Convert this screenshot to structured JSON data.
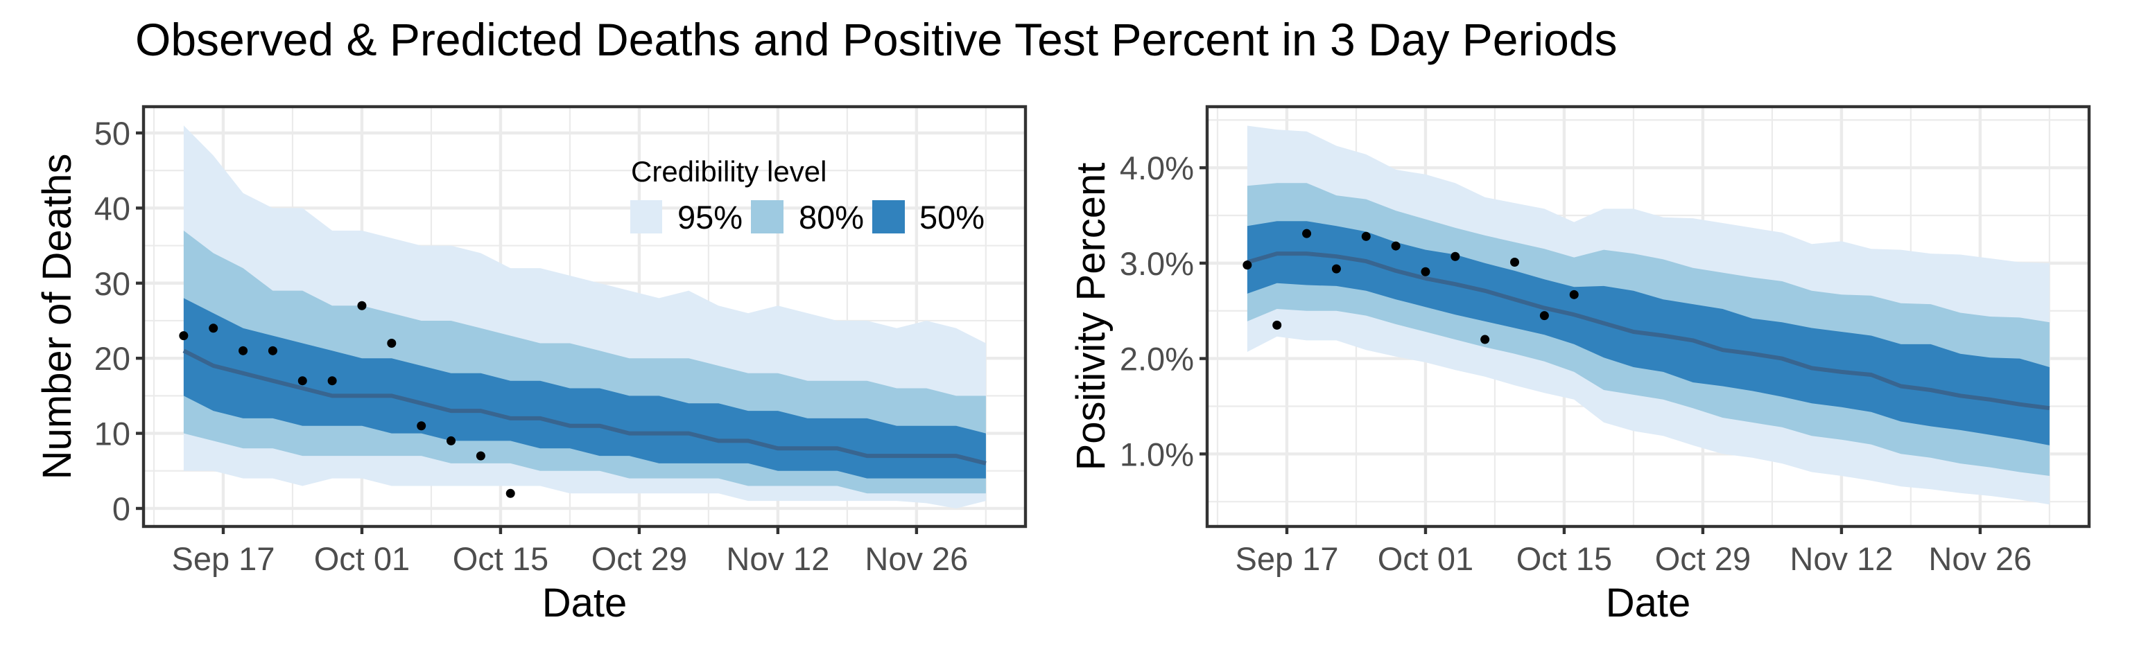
{
  "chart_data": {
    "type": "area",
    "title": "Observed & Predicted Deaths and Positive Test Percent in 3 Day Periods",
    "legend": {
      "title": "Credibility level",
      "placement": "inside-top-right-of-left-panel",
      "entries": [
        {
          "label": "95%",
          "color": "#deebf7"
        },
        {
          "label": "80%",
          "color": "#9ecae1"
        },
        {
          "label": "50%",
          "color": "#3182bd"
        }
      ]
    },
    "colors": {
      "band95": "#deebf7",
      "band80": "#9ecae1",
      "band50": "#3182bd",
      "median": "#386590",
      "observed": "#000000"
    },
    "x_dates": [
      "Sep 13",
      "Sep 16",
      "Sep 19",
      "Sep 22",
      "Sep 25",
      "Sep 28",
      "Oct 01",
      "Oct 04",
      "Oct 07",
      "Oct 10",
      "Oct 13",
      "Oct 16",
      "Oct 19",
      "Oct 22",
      "Oct 25",
      "Oct 28",
      "Oct 31",
      "Nov 03",
      "Nov 06",
      "Nov 09",
      "Nov 12",
      "Nov 15",
      "Nov 18",
      "Nov 21",
      "Nov 24",
      "Nov 27",
      "Nov 30",
      "Dec 03"
    ],
    "x_days_from_start": [
      0,
      3,
      6,
      9,
      12,
      15,
      18,
      21,
      24,
      27,
      30,
      33,
      36,
      39,
      42,
      45,
      48,
      51,
      54,
      57,
      60,
      63,
      66,
      69,
      72,
      75,
      78,
      81
    ],
    "x_range_days": [
      -4.05,
      85
    ],
    "x_ticks": [
      {
        "label": "Sep 17",
        "day": 4
      },
      {
        "label": "Oct 01",
        "day": 18
      },
      {
        "label": "Oct 15",
        "day": 32
      },
      {
        "label": "Oct 29",
        "day": 46
      },
      {
        "label": "Nov 12",
        "day": 60
      },
      {
        "label": "Nov 26",
        "day": 74
      }
    ],
    "panels": [
      {
        "name": "deaths",
        "xlabel": "Date",
        "ylabel": "Number of Deaths",
        "ylim": [
          -2.4,
          53.5
        ],
        "y_ticks": [
          {
            "value": 0,
            "label": "0"
          },
          {
            "value": 10,
            "label": "10"
          },
          {
            "value": 20,
            "label": "20"
          },
          {
            "value": 30,
            "label": "30"
          },
          {
            "value": 40,
            "label": "40"
          },
          {
            "value": 50,
            "label": "50"
          }
        ],
        "y_minor": [
          5,
          15,
          25,
          35,
          45
        ],
        "observed": [
          23,
          24,
          21,
          21,
          17,
          17,
          27,
          22,
          11,
          9,
          7,
          2
        ],
        "median": [
          21,
          19,
          18,
          17,
          16,
          15,
          15,
          15,
          14,
          13,
          13,
          12,
          12,
          11,
          11,
          10,
          10,
          10,
          9,
          9,
          8,
          8,
          8,
          7,
          7,
          7,
          7,
          6
        ],
        "lo50": [
          15,
          13,
          12,
          12,
          11,
          11,
          11,
          10,
          10,
          9,
          9,
          9,
          8,
          8,
          7,
          7,
          6,
          6,
          6,
          6,
          5,
          5,
          5,
          4,
          4,
          4,
          4,
          4
        ],
        "hi50": [
          28,
          26,
          24,
          23,
          22,
          21,
          20,
          20,
          19,
          18,
          18,
          17,
          17,
          16,
          16,
          15,
          15,
          14,
          14,
          13,
          13,
          12,
          12,
          12,
          11,
          11,
          11,
          10
        ],
        "lo80": [
          10,
          9,
          8,
          8,
          7,
          7,
          7,
          7,
          7,
          6,
          6,
          6,
          5,
          5,
          5,
          4,
          4,
          4,
          4,
          3,
          3,
          3,
          3,
          2,
          2,
          2,
          2,
          2
        ],
        "hi80": [
          37,
          34,
          32,
          29,
          29,
          27,
          27,
          26,
          25,
          25,
          24,
          23,
          22,
          22,
          21,
          20,
          20,
          20,
          19,
          18,
          18,
          17,
          17,
          17,
          16,
          16,
          15,
          15
        ],
        "lo95": [
          5,
          5,
          4,
          4,
          3,
          4,
          4,
          3,
          3,
          3,
          3,
          3,
          3,
          2,
          2,
          2,
          2,
          2,
          2,
          1,
          1,
          1,
          1,
          1,
          1,
          0.7,
          0,
          1
        ],
        "hi95": [
          51,
          47,
          42,
          40,
          40,
          37,
          37,
          36,
          35,
          35,
          34,
          32,
          32,
          31,
          30,
          29,
          28,
          29,
          27,
          26,
          27,
          26,
          25,
          25,
          24,
          25,
          24,
          22
        ]
      },
      {
        "name": "positivity",
        "xlabel": "Date",
        "ylabel": "Positivity Percent",
        "ylim": [
          0.24,
          4.64
        ],
        "y_ticks": [
          {
            "value": 1.0,
            "label": "1.0%"
          },
          {
            "value": 2.0,
            "label": "2.0%"
          },
          {
            "value": 3.0,
            "label": "3.0%"
          },
          {
            "value": 4.0,
            "label": "4.0%"
          }
        ],
        "y_minor": [
          0.5,
          1.5,
          2.5,
          3.5,
          4.5
        ],
        "observed": [
          2.98,
          2.35,
          3.31,
          2.94,
          3.28,
          3.18,
          2.91,
          3.07,
          2.2,
          3.01,
          2.45,
          2.67
        ],
        "median": [
          3.01,
          3.1,
          3.1,
          3.07,
          3.02,
          2.92,
          2.84,
          2.78,
          2.71,
          2.62,
          2.53,
          2.46,
          2.37,
          2.28,
          2.24,
          2.19,
          2.09,
          2.05,
          2.0,
          1.9,
          1.86,
          1.83,
          1.71,
          1.67,
          1.61,
          1.57,
          1.52,
          1.48
        ],
        "lo50": [
          2.68,
          2.79,
          2.77,
          2.76,
          2.71,
          2.62,
          2.54,
          2.46,
          2.39,
          2.32,
          2.25,
          2.15,
          2.01,
          1.91,
          1.86,
          1.75,
          1.71,
          1.66,
          1.6,
          1.53,
          1.49,
          1.44,
          1.34,
          1.29,
          1.25,
          1.2,
          1.15,
          1.09
        ],
        "hi50": [
          3.39,
          3.44,
          3.44,
          3.39,
          3.33,
          3.22,
          3.14,
          3.09,
          3.0,
          2.92,
          2.83,
          2.75,
          2.76,
          2.71,
          2.62,
          2.57,
          2.52,
          2.42,
          2.38,
          2.32,
          2.28,
          2.24,
          2.15,
          2.15,
          2.05,
          2.01,
          2.0,
          1.91
        ],
        "lo80": [
          2.39,
          2.52,
          2.5,
          2.5,
          2.45,
          2.36,
          2.28,
          2.2,
          2.12,
          2.05,
          1.97,
          1.86,
          1.67,
          1.62,
          1.57,
          1.48,
          1.38,
          1.33,
          1.28,
          1.19,
          1.15,
          1.1,
          1.0,
          0.96,
          0.9,
          0.86,
          0.81,
          0.77
        ],
        "hi80": [
          3.81,
          3.84,
          3.84,
          3.71,
          3.67,
          3.55,
          3.46,
          3.37,
          3.29,
          3.22,
          3.15,
          3.06,
          3.14,
          3.1,
          3.04,
          2.95,
          2.9,
          2.85,
          2.81,
          2.71,
          2.67,
          2.66,
          2.58,
          2.57,
          2.48,
          2.44,
          2.43,
          2.38
        ],
        "lo95": [
          2.07,
          2.23,
          2.19,
          2.19,
          2.09,
          2.02,
          1.96,
          1.88,
          1.81,
          1.72,
          1.64,
          1.57,
          1.33,
          1.24,
          1.19,
          1.09,
          1.0,
          0.96,
          0.9,
          0.81,
          0.77,
          0.72,
          0.66,
          0.63,
          0.59,
          0.56,
          0.52,
          0.47
        ],
        "hi95": [
          4.44,
          4.4,
          4.38,
          4.23,
          4.14,
          3.98,
          3.93,
          3.84,
          3.69,
          3.63,
          3.57,
          3.43,
          3.57,
          3.57,
          3.48,
          3.47,
          3.42,
          3.37,
          3.32,
          3.2,
          3.23,
          3.15,
          3.14,
          3.1,
          3.09,
          3.05,
          3.01,
          3.0
        ]
      }
    ]
  }
}
